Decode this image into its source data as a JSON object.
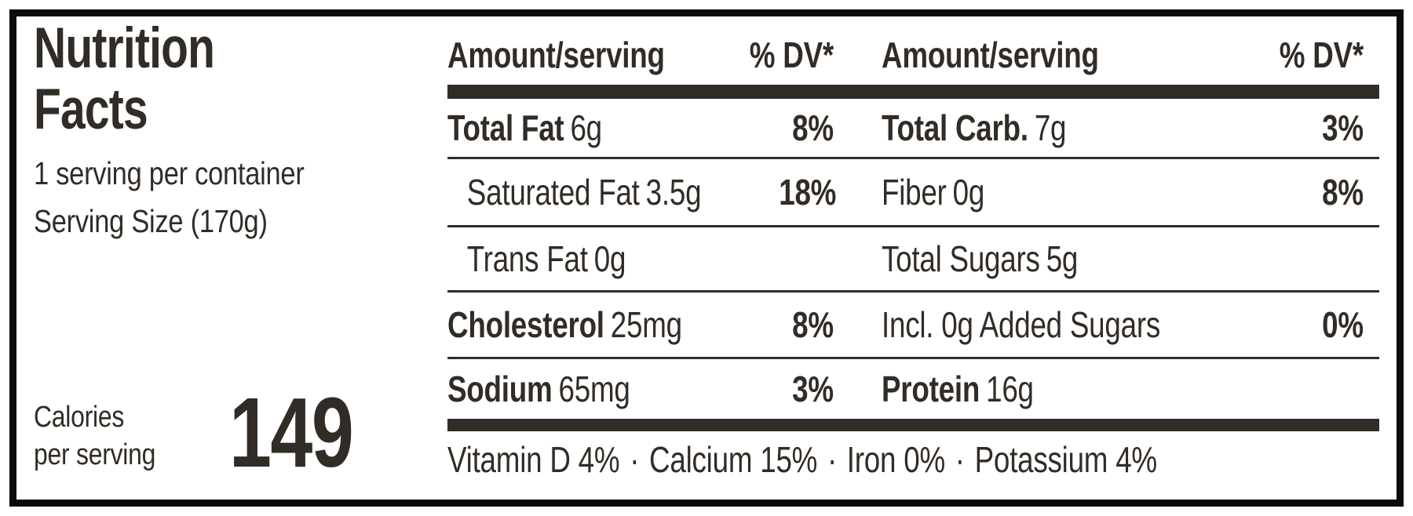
{
  "colors": {
    "ink": "#322c26",
    "border": "#0b0b0b",
    "bg": "#ffffff"
  },
  "label": {
    "title": "Nutrition\nFacts",
    "servings_per_container": "1 serving per container",
    "serving_size": "Serving Size (170g)",
    "calories_label_line1": "Calories",
    "calories_label_line2": "per serving",
    "calories_value": "149"
  },
  "table": {
    "header": {
      "amount_label": "Amount/serving",
      "dv_label": "% DV*"
    },
    "rows": [
      {
        "left": {
          "name": "Total Fat",
          "value": "6g",
          "dv": "8%"
        },
        "right": {
          "name": "Total Carb.",
          "value": "7g",
          "dv": "3%"
        }
      },
      {
        "left": {
          "name": "Saturated Fat",
          "value": "3.5g",
          "dv": "18%"
        },
        "right": {
          "name": "Fiber",
          "value": "0g",
          "dv": "8%"
        }
      },
      {
        "left": {
          "name": "Trans Fat",
          "value": "0g",
          "dv": ""
        },
        "right": {
          "name": "Total Sugars",
          "value": "5g",
          "dv": ""
        }
      },
      {
        "left": {
          "name": "Cholesterol",
          "value": "25mg",
          "dv": "8%"
        },
        "right": {
          "name": "Incl. 0g Added Sugars",
          "value": "",
          "dv": "0%"
        }
      },
      {
        "left": {
          "name": "Sodium",
          "value": "65mg",
          "dv": "3%"
        },
        "right": {
          "name": "Protein",
          "value": "16g",
          "dv": ""
        }
      }
    ],
    "footer": {
      "items": [
        "Vitamin D 4%",
        "Calcium 15%",
        "Iron 0%",
        "Potassium 4%"
      ],
      "separator": "·"
    }
  }
}
